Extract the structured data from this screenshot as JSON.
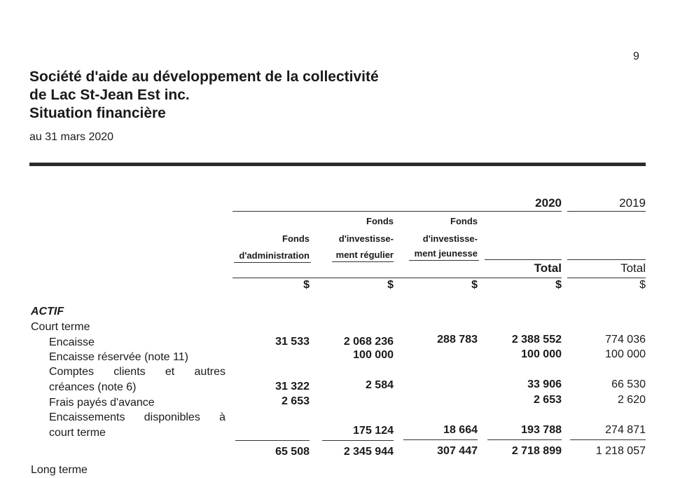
{
  "page_number": "9",
  "header": {
    "title_line1": "Société d'aide au développement de la collectivité",
    "title_line2": "de Lac St-Jean Est inc.",
    "title_line3": "Situation financière",
    "date": "au 31 mars 2020"
  },
  "columns": {
    "year_current": "2020",
    "year_prior": "2019",
    "col1": [
      "Fonds",
      "d'administration"
    ],
    "col2": [
      "Fonds",
      "d'investisse-",
      "ment régulier"
    ],
    "col3": [
      "Fonds",
      "d'investisse-",
      "ment jeunesse"
    ],
    "col4": "Total",
    "col5": "Total",
    "currency": "$"
  },
  "sections": {
    "actif": "ACTIF",
    "court_terme": "Court terme",
    "long_terme": "Long terme"
  },
  "rows": [
    {
      "label": "Encaisse",
      "c1": "31 533",
      "c2": "2 068 236",
      "c3": "288 783",
      "c4": "2 388 552",
      "c5": "774 036"
    },
    {
      "label": "Encaisse réservée (note 11)",
      "c1": "",
      "c2": "100 000",
      "c3": "",
      "c4": "100 000",
      "c5": "100 000"
    },
    {
      "label_a": "Comptes clients et autres",
      "label_b": "créances (note 6)",
      "c1": "31 322",
      "c2": "2 584",
      "c3": "",
      "c4": "33 906",
      "c5": "66 530"
    },
    {
      "label": "Frais payés d'avance",
      "c1": "2 653",
      "c2": "",
      "c3": "",
      "c4": "2 653",
      "c5": "2 620"
    },
    {
      "label_a": "Encaissements disponibles à",
      "label_b": "court terme",
      "c1": "",
      "c2": "175 124",
      "c3": "18 664",
      "c4": "193 788",
      "c5": "274 871"
    }
  ],
  "subtotal": {
    "c1": "65 508",
    "c2": "2 345 944",
    "c3": "307 447",
    "c4": "2 718 899",
    "c5": "1 218 057"
  }
}
